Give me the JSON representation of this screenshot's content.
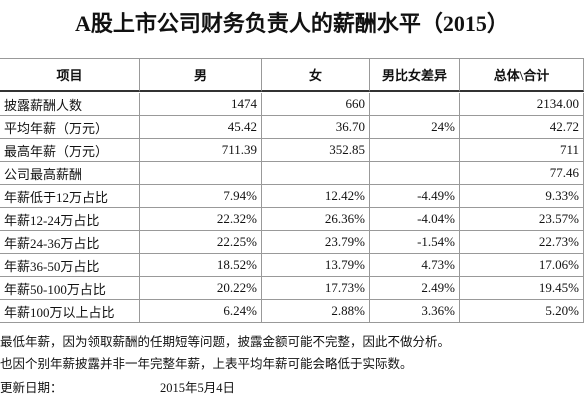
{
  "title": "A股上市公司财务负责人的薪酬水平（2015）",
  "table": {
    "header": [
      "项目",
      "男",
      "女",
      "男比女差异",
      "总体\\合计"
    ],
    "rows": [
      [
        "披露薪酬人数",
        "1474",
        "660",
        null,
        "2134.00"
      ],
      [
        "平均年薪（万元）",
        "45.42",
        "36.70",
        "24%",
        "42.72"
      ],
      [
        "最高年薪（万元）",
        "711.39",
        "352.85",
        null,
        "711"
      ],
      [
        "公司最高薪酬",
        null,
        null,
        null,
        "77.46"
      ],
      [
        "年薪低于12万占比",
        "7.94%",
        "12.42%",
        "-4.49%",
        "9.33%"
      ],
      [
        "年薪12-24万占比",
        "22.32%",
        "26.36%",
        "-4.04%",
        "23.57%"
      ],
      [
        "年薪24-36万占比",
        "22.25%",
        "23.79%",
        "-1.54%",
        "22.73%"
      ],
      [
        "年薪36-50万占比",
        "18.52%",
        "13.79%",
        "4.73%",
        "17.06%"
      ],
      [
        "年薪50-100万占比",
        "20.22%",
        "17.73%",
        "2.49%",
        "19.45%"
      ],
      [
        "年薪100万以上占比",
        "6.24%",
        "2.88%",
        "3.36%",
        "5.20%"
      ]
    ]
  },
  "notes": [
    "最低年薪，因为领取薪酬的任期短等问题，披露金额可能不完整，因此不做分析。",
    "也因个别年薪披露并非一年完整年薪，上表平均年薪可能会略低于实际数。"
  ],
  "update": {
    "label": "更新日期：",
    "date": "2015年5月4日"
  }
}
